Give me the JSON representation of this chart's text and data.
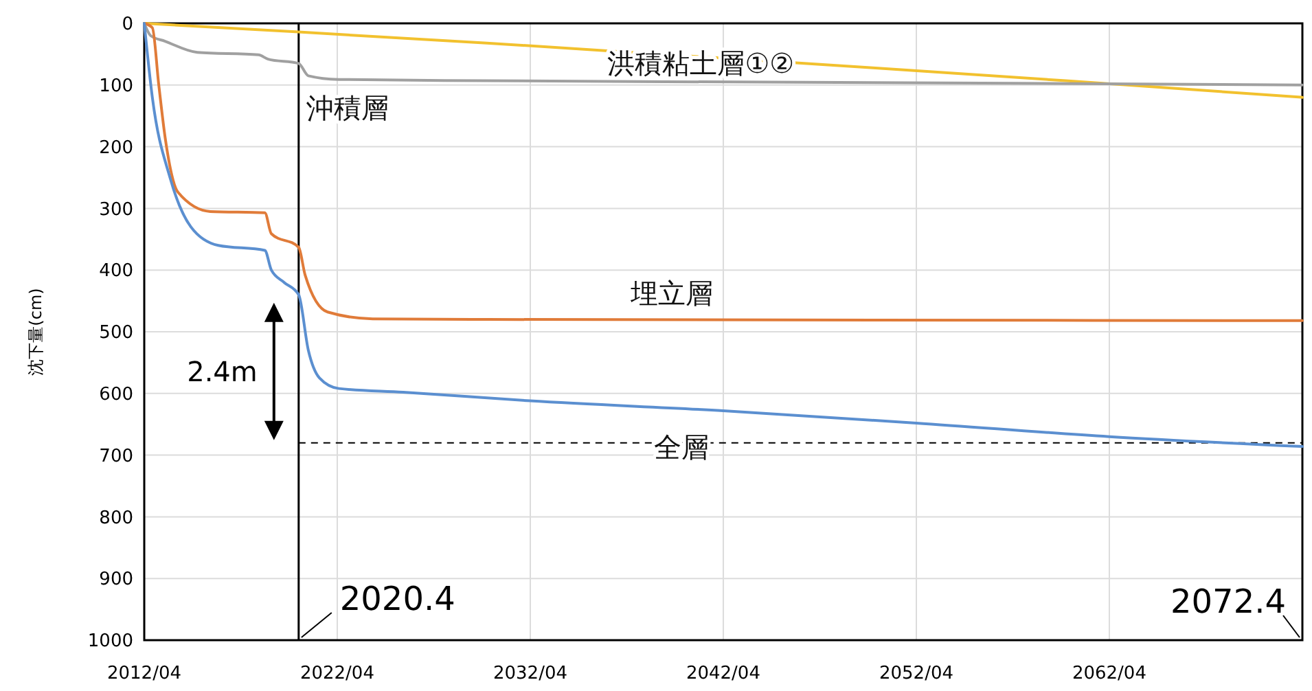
{
  "chart_data": {
    "type": "line",
    "ylabel": "沈下量(cm)",
    "xlim": [
      "2012-04",
      "2072-04"
    ],
    "xticks": [
      {
        "value": "2012-04",
        "label": "2012/04"
      },
      {
        "value": "2022-04",
        "label": "2022/04"
      },
      {
        "value": "2032-04",
        "label": "2032/04"
      },
      {
        "value": "2042-04",
        "label": "2042/04"
      },
      {
        "value": "2052-04",
        "label": "2052/04"
      },
      {
        "value": "2062-04",
        "label": "2062/04"
      }
    ],
    "ylim": [
      1000,
      0
    ],
    "yticks": [
      0,
      100,
      200,
      300,
      400,
      500,
      600,
      700,
      800,
      900,
      1000
    ],
    "grid": true,
    "line_style": "solid",
    "marker": "none",
    "series": [
      {
        "name": "洪積粘土層①②",
        "color": "#f2c12e",
        "x": [
          "2012-04",
          "2020-04",
          "2030-01",
          "2040-01",
          "2050-01",
          "2060-01",
          "2072-04"
        ],
        "values": [
          0,
          14,
          32,
          52,
          72,
          93,
          120
        ]
      },
      {
        "name": "沖積層",
        "color": "#a0a0a0",
        "x": [
          "2012-04",
          "2012-08",
          "2013-05",
          "2015-01",
          "2018-03",
          "2018-09",
          "2020-04",
          "2020-10",
          "2022-05",
          "2030-01",
          "2050-01",
          "2072-04"
        ],
        "values": [
          0,
          20,
          29,
          47,
          51,
          58,
          65,
          85,
          91,
          93,
          96,
          100
        ]
      },
      {
        "name": "埋立層",
        "color": "#e07b39",
        "x": [
          "2012-04",
          "2012-09",
          "2013-01",
          "2013-05",
          "2014-01",
          "2015-09",
          "2018-07",
          "2018-11",
          "2020-04",
          "2020-08",
          "2021-10",
          "2024-02",
          "2030-01",
          "2050-01",
          "2072-04"
        ],
        "values": [
          0,
          7,
          100,
          185,
          274,
          305,
          307,
          341,
          363,
          408,
          468,
          479,
          480,
          481,
          482
        ]
      },
      {
        "name": "全層",
        "color": "#5b8fd0",
        "x": [
          "2012-04",
          "2012-09",
          "2013-08",
          "2014-09",
          "2016-02",
          "2018-07",
          "2018-11",
          "2019-07",
          "2020-04",
          "2020-10",
          "2021-05",
          "2022-05",
          "2025-09",
          "2032-04",
          "2042-04",
          "2052-04",
          "2062-04",
          "2072-04"
        ],
        "values": [
          0,
          120,
          250,
          330,
          360,
          368,
          400,
          420,
          440,
          530,
          575,
          592,
          598,
          612,
          628,
          648,
          670,
          686
        ]
      }
    ],
    "ref_lines": [
      {
        "axis": "x",
        "value": "2020-04",
        "label": "2020.4",
        "color": "#000000",
        "line_style": "solid"
      },
      {
        "axis": "y",
        "value": 680,
        "color": "#000000",
        "line_style": "dashed"
      }
    ],
    "annotations": [
      "2.4m",
      "2072.4"
    ]
  }
}
